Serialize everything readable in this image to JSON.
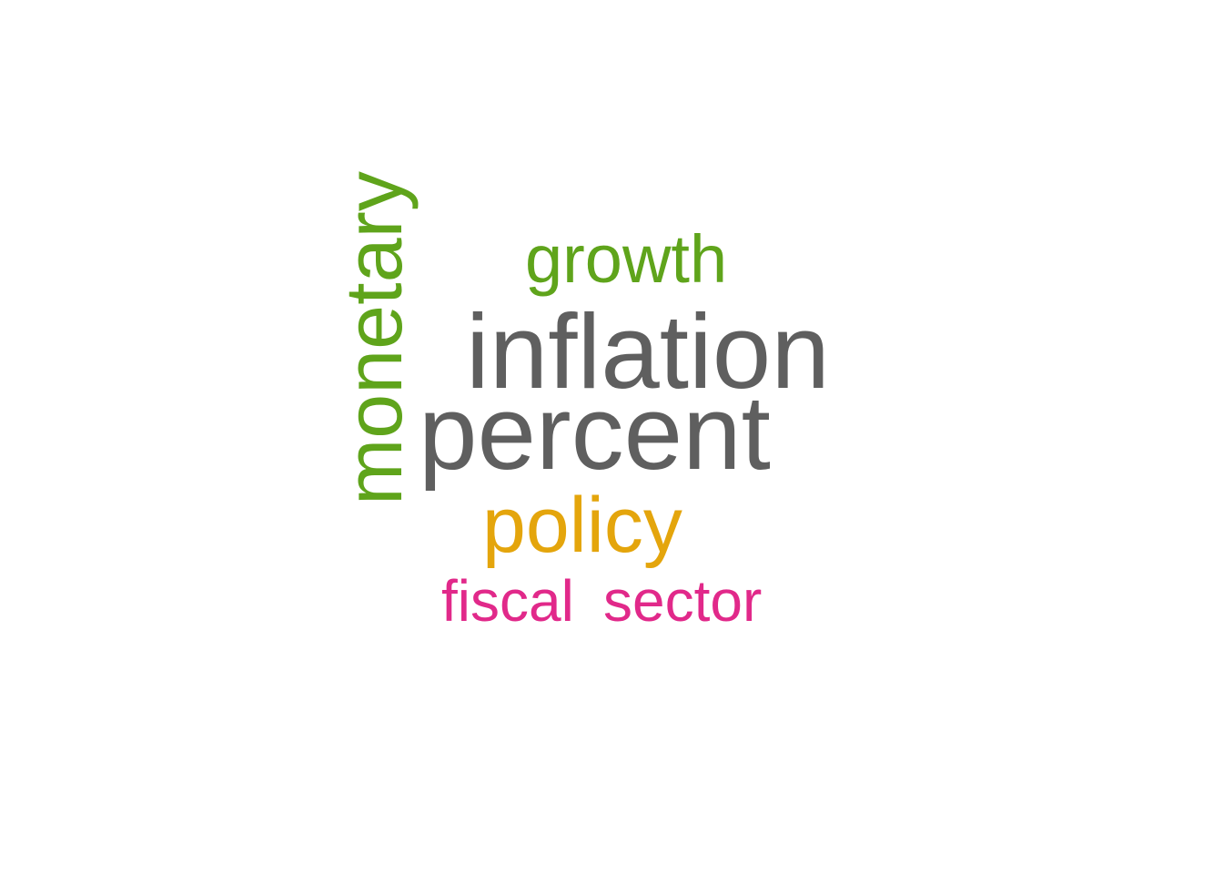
{
  "colors": {
    "gray": "#5f5f5f",
    "green": "#5fa41b",
    "gold": "#e4a50c",
    "magenta": "#e1298a"
  },
  "words": {
    "monetary": {
      "text": "monetary",
      "color": "#5fa41b",
      "orientation": "vertical"
    },
    "growth": {
      "text": "growth",
      "color": "#5fa41b"
    },
    "inflation": {
      "text": "inflation",
      "color": "#5f5f5f"
    },
    "percent": {
      "text": "percent",
      "color": "#5f5f5f"
    },
    "policy": {
      "text": "policy",
      "color": "#e4a50c"
    },
    "fiscal": {
      "text": "fiscal",
      "color": "#e1298a"
    },
    "sector": {
      "text": "sector",
      "color": "#e1298a"
    }
  }
}
